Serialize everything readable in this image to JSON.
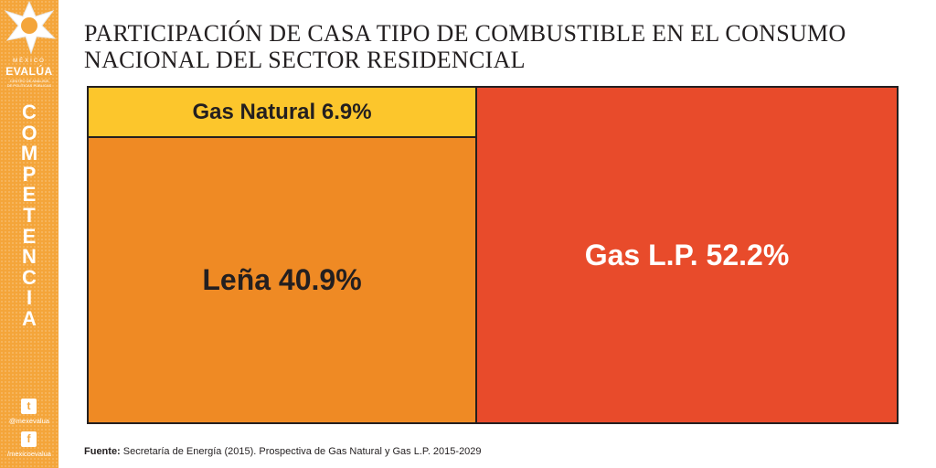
{
  "sidebar": {
    "brand_top": "MÉXICO",
    "brand_name": "EVALÚA",
    "brand_sub_1": "CENTRO DE ANÁLISIS",
    "brand_sub_2": "DE POLÍTICAS PÚBLICAS",
    "section_letters": [
      "C",
      "O",
      "M",
      "P",
      "E",
      "T",
      "E",
      "N",
      "C",
      "I",
      "A"
    ],
    "twitter_handle": "@mexevalua",
    "facebook_handle": "/mexicoevalua",
    "accent_color": "#f4a53a"
  },
  "title_line_1": "PARTICIPACIÓN DE CASA TIPO DE COMBUSTIBLE EN EL CONSUMO",
  "title_line_2": "NACIONAL DEL SECTOR RESIDENCIAL",
  "source_label": "Fuente:",
  "source_text": " Secretaría de Energía (2015). Prospectiva de Gas Natural y Gas L.P. 2015-2029",
  "chart_data": {
    "type": "treemap",
    "title": "PARTICIPACIÓN DE CASA TIPO DE COMBUSTIBLE EN EL CONSUMO NACIONAL DEL SECTOR RESIDENCIAL",
    "items": [
      {
        "label": "Gas Natural 6.9%",
        "name": "Gas Natural",
        "value": 6.9,
        "color": "#fcc62c",
        "text_color": "#231f20"
      },
      {
        "label": "Leña 40.9%",
        "name": "Leña",
        "value": 40.9,
        "color": "#ef8a24",
        "text_color": "#231f20"
      },
      {
        "label": "Gas L.P. 52.2%",
        "name": "Gas L.P.",
        "value": 52.2,
        "color": "#e84b2b",
        "text_color": "#ffffff"
      }
    ]
  }
}
